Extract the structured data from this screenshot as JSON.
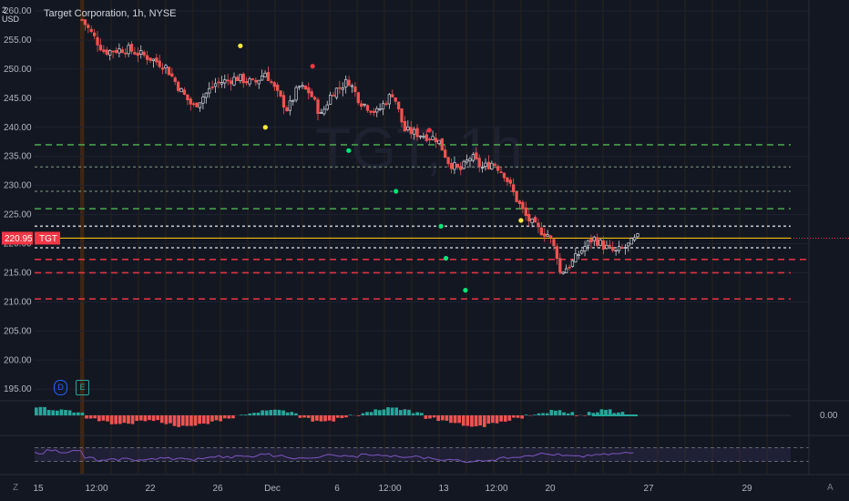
{
  "header": {
    "title": "Target Corporation, 1h, NYSE",
    "currency_line1": "2",
    "currency_line2": "USD"
  },
  "watermark": "TGT, 1h",
  "corner_left": "Z",
  "corner_right": "A",
  "badges": {
    "dividend": "D",
    "earnings": "E"
  },
  "colors": {
    "background": "#131722",
    "up": "#26a69a",
    "down": "#ef5350",
    "price_line": "#f0b90b",
    "support": "#4caf50",
    "resistance": "#f23645",
    "rsi": "#7e57c2"
  },
  "chart_data": {
    "type": "candlestick",
    "symbol": "TGT",
    "title": "Target Corporation, 1h, NYSE",
    "ylabel": "USD",
    "ylim": [
      193,
      260
    ],
    "y_ticks": [
      195,
      200,
      205,
      210,
      215,
      220,
      225,
      230,
      235,
      240,
      245,
      250,
      255,
      260
    ],
    "y_tick_labels": [
      "195.00",
      "200.00",
      "205.00",
      "210.00",
      "215.00",
      "220.00",
      "225.00",
      "230.00",
      "235.00",
      "240.00",
      "245.00",
      "250.00",
      "255.00",
      "260.00"
    ],
    "x_tick_labels": [
      "15",
      "12:00",
      "22",
      "26",
      "Dec",
      "6",
      "12:00",
      "13",
      "12:00",
      "20",
      "27",
      "29"
    ],
    "last_price": 220.95,
    "last_price_label": "220.95",
    "symbol_label": "TGT",
    "close_path": [
      [
        0,
        258.5
      ],
      [
        0.04,
        253
      ],
      [
        0.08,
        253.5
      ],
      [
        0.12,
        252
      ],
      [
        0.15,
        250.5
      ],
      [
        0.18,
        246
      ],
      [
        0.2,
        243.5
      ],
      [
        0.24,
        247.5
      ],
      [
        0.28,
        248.5
      ],
      [
        0.31,
        247.5
      ],
      [
        0.33,
        249.5
      ],
      [
        0.35,
        246
      ],
      [
        0.37,
        243
      ],
      [
        0.39,
        247
      ],
      [
        0.41,
        246
      ],
      [
        0.43,
        242
      ],
      [
        0.45,
        246
      ],
      [
        0.48,
        248
      ],
      [
        0.5,
        244.5
      ],
      [
        0.53,
        242.5
      ],
      [
        0.56,
        246
      ],
      [
        0.58,
        239.5
      ],
      [
        0.62,
        238.5
      ],
      [
        0.64,
        238
      ],
      [
        0.66,
        234
      ],
      [
        0.68,
        232.5
      ],
      [
        0.7,
        235
      ],
      [
        0.72,
        233
      ],
      [
        0.74,
        234
      ],
      [
        0.76,
        232
      ],
      [
        0.78,
        228
      ],
      [
        0.8,
        224.5
      ],
      [
        0.82,
        222.5
      ],
      [
        0.84,
        221.5
      ],
      [
        0.855,
        218
      ],
      [
        0.86,
        215
      ],
      [
        0.88,
        216.5
      ],
      [
        0.9,
        219
      ],
      [
        0.92,
        221
      ],
      [
        0.94,
        219.5
      ],
      [
        0.96,
        218.5
      ],
      [
        0.98,
        219.5
      ],
      [
        1.0,
        221
      ]
    ],
    "horizontal_levels": [
      {
        "price": 237.0,
        "kind": "support"
      },
      {
        "price": 233.2,
        "kind": "minor"
      },
      {
        "price": 229.0,
        "kind": "minor"
      },
      {
        "price": 226.0,
        "kind": "support"
      },
      {
        "price": 223.0,
        "kind": "neutral"
      },
      {
        "price": 219.3,
        "kind": "neutral"
      },
      {
        "price": 217.3,
        "kind": "resistance"
      },
      {
        "price": 215.0,
        "kind": "resistance"
      },
      {
        "price": 210.5,
        "kind": "resistance"
      }
    ],
    "signals": [
      {
        "t": 0.285,
        "price": 254.0,
        "color": "yellow"
      },
      {
        "t": 0.33,
        "price": 240.0,
        "color": "yellow"
      },
      {
        "t": 0.415,
        "price": 250.5,
        "color": "red"
      },
      {
        "t": 0.48,
        "price": 236.0,
        "color": "green"
      },
      {
        "t": 0.565,
        "price": 229.0,
        "color": "green"
      },
      {
        "t": 0.625,
        "price": 239.5,
        "color": "red"
      },
      {
        "t": 0.646,
        "price": 223.0,
        "color": "green"
      },
      {
        "t": 0.655,
        "price": 217.5,
        "color": "green"
      },
      {
        "t": 0.69,
        "price": 212.0,
        "color": "green"
      },
      {
        "t": 0.79,
        "price": 224.0,
        "color": "yellow"
      }
    ],
    "macd": {
      "zero_label": "0.00",
      "bars": [
        3,
        2,
        2,
        1,
        -1,
        -2,
        -3,
        -3,
        -2,
        -2,
        -3,
        -4,
        -4,
        -3,
        -2,
        -1,
        0,
        1,
        2,
        2,
        1,
        -1,
        -2,
        -2,
        -1,
        0,
        1,
        2,
        3,
        2,
        1,
        -1,
        -2,
        -3,
        -4,
        -4,
        -3,
        -2,
        -1,
        0,
        1,
        2,
        1,
        0,
        1,
        2,
        1,
        0
      ]
    },
    "rsi": {
      "upper": 70,
      "lower": 30,
      "values": [
        55,
        62,
        58,
        60,
        40,
        32,
        35,
        38,
        34,
        36,
        42,
        38,
        35,
        40,
        45,
        42,
        48,
        44,
        50,
        46,
        40,
        38,
        42,
        48,
        46,
        44,
        50,
        48,
        45,
        42,
        44,
        40,
        36,
        34,
        30,
        32,
        35,
        40,
        44,
        48,
        52,
        50,
        46,
        44,
        48,
        50,
        52,
        55
      ]
    }
  }
}
